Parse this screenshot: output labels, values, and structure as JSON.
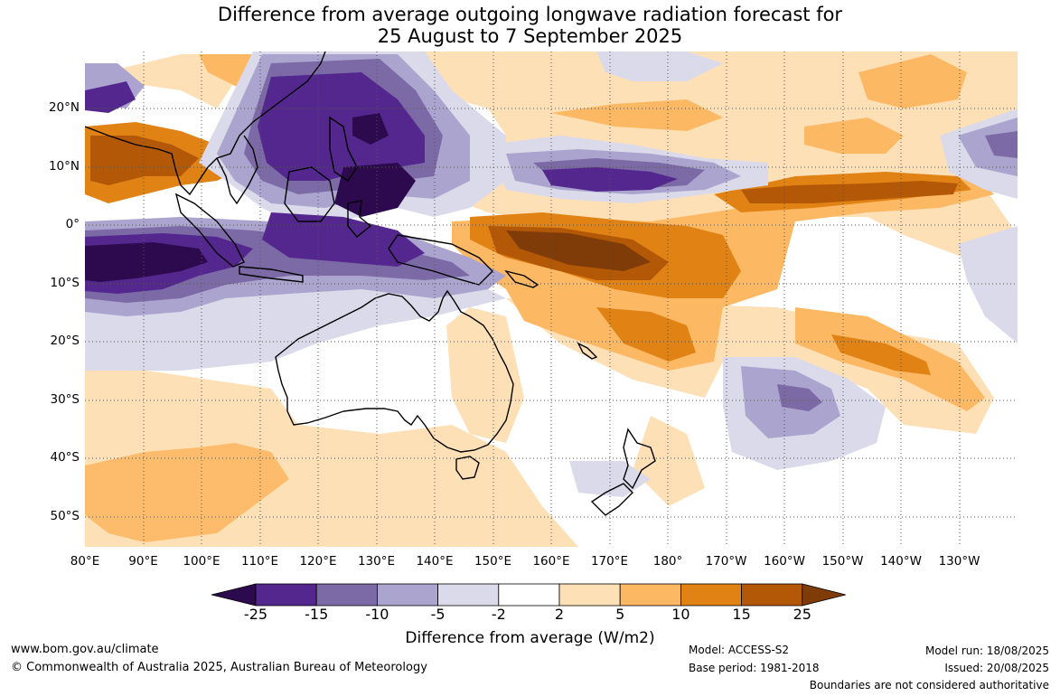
{
  "title": {
    "line1": "Difference from average outgoing longwave radiation forecast for",
    "line2": "25 August to 7 September 2025"
  },
  "map": {
    "region": "Australia and western Pacific",
    "lat_ticks": [
      "20°N",
      "10°N",
      "0°",
      "10°S",
      "20°S",
      "30°S",
      "40°S",
      "50°S"
    ],
    "lon_ticks": [
      "80°E",
      "90°E",
      "100°E",
      "110°E",
      "120°E",
      "130°E",
      "140°E",
      "150°E",
      "160°E",
      "170°E",
      "180°",
      "170°W",
      "160°W",
      "150°W",
      "140°W",
      "130°W"
    ]
  },
  "colorbar": {
    "labels": [
      "-25",
      "-15",
      "-10",
      "-5",
      "-2",
      "2",
      "5",
      "10",
      "15",
      "25"
    ],
    "colors": [
      "#2d0a4e",
      "#54278f",
      "#7b6aa6",
      "#aba4cf",
      "#dadaeb",
      "#ffffff",
      "#fee0b6",
      "#fdb863",
      "#e08214",
      "#b35806",
      "#7f3b08"
    ],
    "title": "Difference from average (W/m2)"
  },
  "footer": {
    "website": "www.bom.gov.au/climate",
    "copyright": "© Commonwealth of Australia 2025, Australian Bureau of Meteorology",
    "model": "Model: ACCESS-S2",
    "base_period": "Base period: 1981-2018",
    "model_run": "Model run: 18/08/2025",
    "issued": "Issued: 20/08/2025",
    "boundaries": "Boundaries are not considered authoritative"
  }
}
